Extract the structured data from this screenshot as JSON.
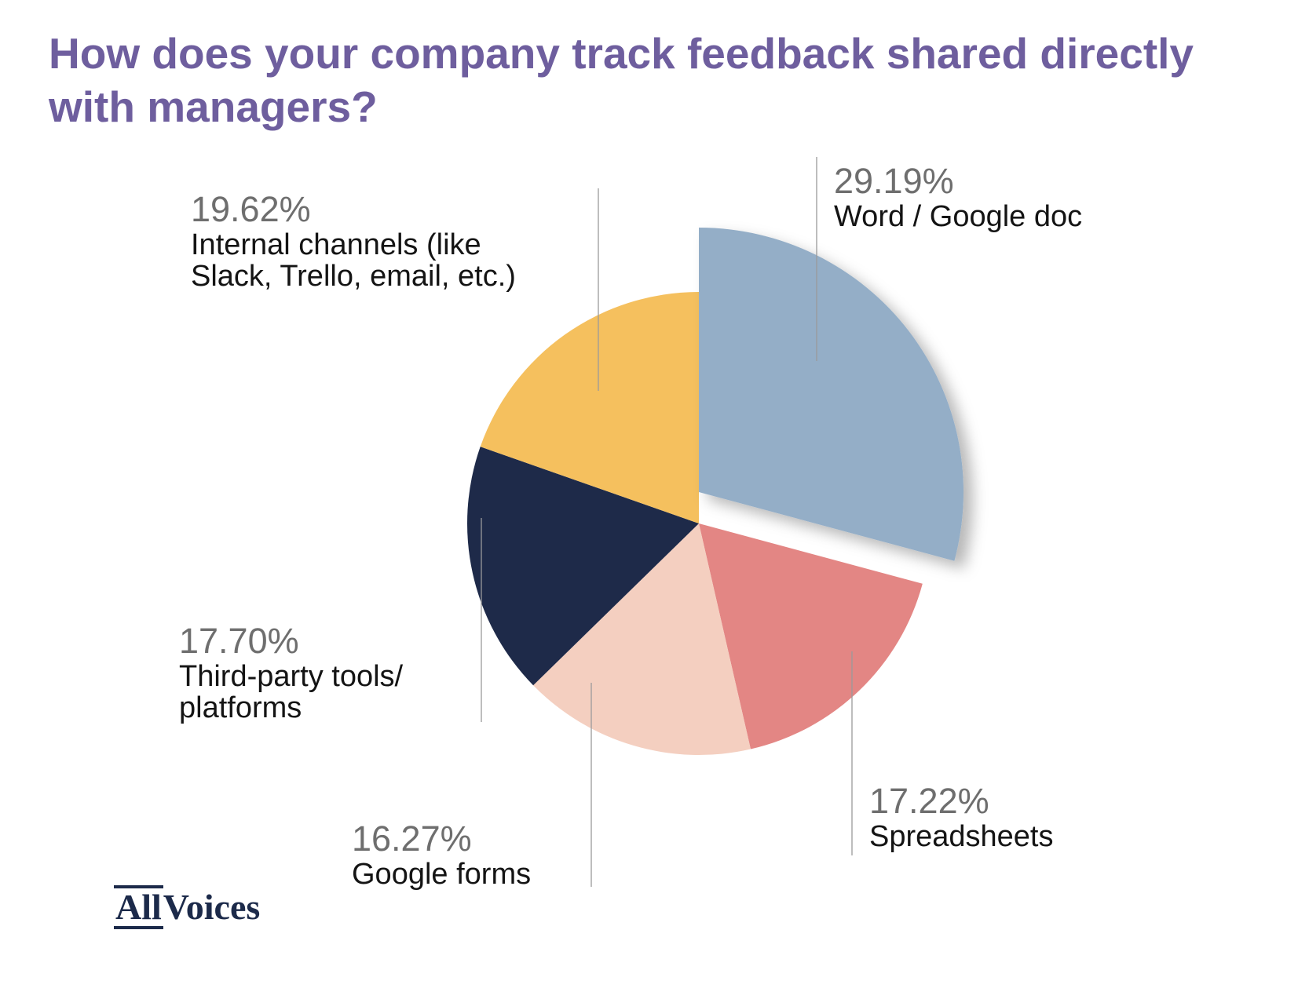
{
  "title": "How does your company track feedback shared directly with managers?",
  "brand": {
    "part1": "All",
    "part2": "Voices"
  },
  "chart_data": {
    "type": "pie",
    "start_angle_deg": 0,
    "direction": "clockwise",
    "exploded": "Word / Google doc",
    "slices": [
      {
        "label": "Word / Google doc",
        "value": 29.19,
        "pct_text": "29.19%",
        "color": "#94aec7",
        "label_lines": [
          "Word / Google doc"
        ]
      },
      {
        "label": "Spreadsheets",
        "value": 17.22,
        "pct_text": "17.22%",
        "color": "#e38684",
        "label_lines": [
          "Spreadsheets"
        ]
      },
      {
        "label": "Google forms",
        "value": 16.27,
        "pct_text": "16.27%",
        "color": "#f4cfc0",
        "label_lines": [
          "Google forms"
        ]
      },
      {
        "label": "Third-party tools/ platforms",
        "value": 17.7,
        "pct_text": "17.70%",
        "color": "#1e2a49",
        "label_lines": [
          "Third-party tools/",
          "platforms"
        ]
      },
      {
        "label": "Internal channels (like Slack, Trello, email, etc.)",
        "value": 19.62,
        "pct_text": "19.62%",
        "color": "#f5c05e",
        "label_lines": [
          "Internal channels (like",
          "Slack, Trello, email, etc.)"
        ]
      }
    ]
  }
}
